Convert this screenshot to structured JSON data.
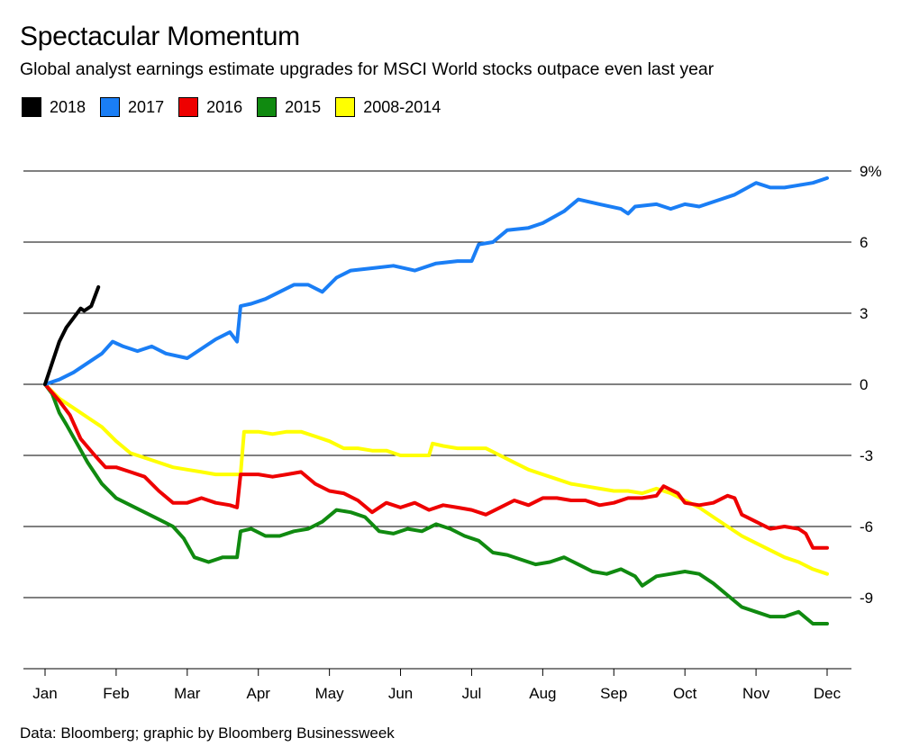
{
  "title": "Spectacular Momentum",
  "subtitle": "Global analyst earnings estimate upgrades for MSCI World stocks outpace even last year",
  "source": "Data: Bloomberg; graphic by Bloomberg Businessweek",
  "legend": [
    {
      "label": "2018",
      "color": "#000000"
    },
    {
      "label": "2017",
      "color": "#1a7ef5"
    },
    {
      "label": "2016",
      "color": "#ee0000"
    },
    {
      "label": "2015",
      "color": "#108a10"
    },
    {
      "label": "2008-2014",
      "color": "#ffff00"
    }
  ],
  "chart_data": {
    "type": "line",
    "title": "Spectacular Momentum",
    "subtitle": "Global analyst earnings estimate upgrades for MSCI World stocks outpace even last year",
    "x_unit": "month index (0 = Jan, 11 = Dec)",
    "x_categories": [
      "Jan",
      "Feb",
      "Mar",
      "Apr",
      "May",
      "Jun",
      "Jul",
      "Aug",
      "Sep",
      "Oct",
      "Nov",
      "Dec"
    ],
    "ylim": [
      -12,
      9
    ],
    "y_ticks": [
      9,
      6,
      3,
      0,
      -3,
      -6,
      -9
    ],
    "y_tick_labels": [
      "9%",
      "6",
      "3",
      "0",
      "-3",
      "-6",
      "-9"
    ],
    "grid": true,
    "legend_position": "top-left",
    "series": [
      {
        "name": "2018",
        "color": "#000000",
        "points": [
          [
            0,
            0
          ],
          [
            0.1,
            0.9
          ],
          [
            0.2,
            1.8
          ],
          [
            0.3,
            2.4
          ],
          [
            0.4,
            2.8
          ],
          [
            0.5,
            3.2
          ],
          [
            0.55,
            3.1
          ],
          [
            0.65,
            3.3
          ],
          [
            0.75,
            4.1
          ]
        ]
      },
      {
        "name": "2017",
        "color": "#1a7ef5",
        "points": [
          [
            0,
            0
          ],
          [
            0.2,
            0.2
          ],
          [
            0.4,
            0.5
          ],
          [
            0.6,
            0.9
          ],
          [
            0.8,
            1.3
          ],
          [
            0.95,
            1.8
          ],
          [
            1.1,
            1.6
          ],
          [
            1.3,
            1.4
          ],
          [
            1.5,
            1.6
          ],
          [
            1.7,
            1.3
          ],
          [
            2.0,
            1.1
          ],
          [
            2.2,
            1.5
          ],
          [
            2.4,
            1.9
          ],
          [
            2.6,
            2.2
          ],
          [
            2.7,
            1.8
          ],
          [
            2.75,
            3.3
          ],
          [
            2.9,
            3.4
          ],
          [
            3.1,
            3.6
          ],
          [
            3.3,
            3.9
          ],
          [
            3.5,
            4.2
          ],
          [
            3.7,
            4.2
          ],
          [
            3.9,
            3.9
          ],
          [
            4.1,
            4.5
          ],
          [
            4.3,
            4.8
          ],
          [
            4.6,
            4.9
          ],
          [
            4.9,
            5.0
          ],
          [
            5.2,
            4.8
          ],
          [
            5.5,
            5.1
          ],
          [
            5.8,
            5.2
          ],
          [
            6.0,
            5.2
          ],
          [
            6.1,
            5.9
          ],
          [
            6.3,
            6.0
          ],
          [
            6.5,
            6.5
          ],
          [
            6.8,
            6.6
          ],
          [
            7.0,
            6.8
          ],
          [
            7.3,
            7.3
          ],
          [
            7.5,
            7.8
          ],
          [
            7.8,
            7.6
          ],
          [
            8.1,
            7.4
          ],
          [
            8.2,
            7.2
          ],
          [
            8.3,
            7.5
          ],
          [
            8.6,
            7.6
          ],
          [
            8.8,
            7.4
          ],
          [
            9.0,
            7.6
          ],
          [
            9.2,
            7.5
          ],
          [
            9.5,
            7.8
          ],
          [
            9.7,
            8.0
          ],
          [
            10.0,
            8.5
          ],
          [
            10.2,
            8.3
          ],
          [
            10.4,
            8.3
          ],
          [
            10.6,
            8.4
          ],
          [
            10.8,
            8.5
          ],
          [
            11.0,
            8.7
          ]
        ]
      },
      {
        "name": "2016",
        "color": "#ee0000",
        "points": [
          [
            0,
            0
          ],
          [
            0.2,
            -0.7
          ],
          [
            0.35,
            -1.3
          ],
          [
            0.5,
            -2.3
          ],
          [
            0.7,
            -3.0
          ],
          [
            0.85,
            -3.5
          ],
          [
            1.0,
            -3.5
          ],
          [
            1.2,
            -3.7
          ],
          [
            1.4,
            -3.9
          ],
          [
            1.6,
            -4.5
          ],
          [
            1.8,
            -5.0
          ],
          [
            2.0,
            -5.0
          ],
          [
            2.2,
            -4.8
          ],
          [
            2.4,
            -5.0
          ],
          [
            2.6,
            -5.1
          ],
          [
            2.7,
            -5.2
          ],
          [
            2.75,
            -3.8
          ],
          [
            3.0,
            -3.8
          ],
          [
            3.2,
            -3.9
          ],
          [
            3.4,
            -3.8
          ],
          [
            3.6,
            -3.7
          ],
          [
            3.8,
            -4.2
          ],
          [
            4.0,
            -4.5
          ],
          [
            4.2,
            -4.6
          ],
          [
            4.4,
            -4.9
          ],
          [
            4.6,
            -5.4
          ],
          [
            4.8,
            -5.0
          ],
          [
            5.0,
            -5.2
          ],
          [
            5.2,
            -5.0
          ],
          [
            5.4,
            -5.3
          ],
          [
            5.6,
            -5.1
          ],
          [
            5.8,
            -5.2
          ],
          [
            6.0,
            -5.3
          ],
          [
            6.2,
            -5.5
          ],
          [
            6.4,
            -5.2
          ],
          [
            6.6,
            -4.9
          ],
          [
            6.8,
            -5.1
          ],
          [
            7.0,
            -4.8
          ],
          [
            7.2,
            -4.8
          ],
          [
            7.4,
            -4.9
          ],
          [
            7.6,
            -4.9
          ],
          [
            7.8,
            -5.1
          ],
          [
            8.0,
            -5.0
          ],
          [
            8.2,
            -4.8
          ],
          [
            8.4,
            -4.8
          ],
          [
            8.6,
            -4.7
          ],
          [
            8.7,
            -4.3
          ],
          [
            8.9,
            -4.6
          ],
          [
            9.0,
            -5.0
          ],
          [
            9.2,
            -5.1
          ],
          [
            9.4,
            -5.0
          ],
          [
            9.6,
            -4.7
          ],
          [
            9.7,
            -4.8
          ],
          [
            9.8,
            -5.5
          ],
          [
            10.0,
            -5.8
          ],
          [
            10.2,
            -6.1
          ],
          [
            10.4,
            -6.0
          ],
          [
            10.6,
            -6.1
          ],
          [
            10.7,
            -6.3
          ],
          [
            10.8,
            -6.9
          ],
          [
            11.0,
            -6.9
          ]
        ]
      },
      {
        "name": "2015",
        "color": "#108a10",
        "points": [
          [
            0,
            0
          ],
          [
            0.1,
            -0.4
          ],
          [
            0.2,
            -1.2
          ],
          [
            0.3,
            -1.7
          ],
          [
            0.45,
            -2.5
          ],
          [
            0.6,
            -3.3
          ],
          [
            0.8,
            -4.2
          ],
          [
            1.0,
            -4.8
          ],
          [
            1.2,
            -5.1
          ],
          [
            1.4,
            -5.4
          ],
          [
            1.6,
            -5.7
          ],
          [
            1.8,
            -6.0
          ],
          [
            1.95,
            -6.5
          ],
          [
            2.1,
            -7.3
          ],
          [
            2.3,
            -7.5
          ],
          [
            2.5,
            -7.3
          ],
          [
            2.7,
            -7.3
          ],
          [
            2.75,
            -6.2
          ],
          [
            2.9,
            -6.1
          ],
          [
            3.1,
            -6.4
          ],
          [
            3.3,
            -6.4
          ],
          [
            3.5,
            -6.2
          ],
          [
            3.7,
            -6.1
          ],
          [
            3.9,
            -5.8
          ],
          [
            4.1,
            -5.3
          ],
          [
            4.3,
            -5.4
          ],
          [
            4.5,
            -5.6
          ],
          [
            4.7,
            -6.2
          ],
          [
            4.9,
            -6.3
          ],
          [
            5.1,
            -6.1
          ],
          [
            5.3,
            -6.2
          ],
          [
            5.5,
            -5.9
          ],
          [
            5.7,
            -6.1
          ],
          [
            5.9,
            -6.4
          ],
          [
            6.1,
            -6.6
          ],
          [
            6.3,
            -7.1
          ],
          [
            6.5,
            -7.2
          ],
          [
            6.7,
            -7.4
          ],
          [
            6.9,
            -7.6
          ],
          [
            7.1,
            -7.5
          ],
          [
            7.3,
            -7.3
          ],
          [
            7.5,
            -7.6
          ],
          [
            7.7,
            -7.9
          ],
          [
            7.9,
            -8.0
          ],
          [
            8.1,
            -7.8
          ],
          [
            8.3,
            -8.1
          ],
          [
            8.4,
            -8.5
          ],
          [
            8.6,
            -8.1
          ],
          [
            8.8,
            -8.0
          ],
          [
            9.0,
            -7.9
          ],
          [
            9.2,
            -8.0
          ],
          [
            9.4,
            -8.4
          ],
          [
            9.6,
            -8.9
          ],
          [
            9.8,
            -9.4
          ],
          [
            10.0,
            -9.6
          ],
          [
            10.2,
            -9.8
          ],
          [
            10.4,
            -9.8
          ],
          [
            10.6,
            -9.6
          ],
          [
            10.8,
            -10.1
          ],
          [
            11.0,
            -10.1
          ]
        ]
      },
      {
        "name": "2008-2014",
        "color": "#ffff00",
        "points": [
          [
            0,
            0
          ],
          [
            0.2,
            -0.6
          ],
          [
            0.4,
            -1.0
          ],
          [
            0.6,
            -1.4
          ],
          [
            0.8,
            -1.8
          ],
          [
            1.0,
            -2.4
          ],
          [
            1.2,
            -2.9
          ],
          [
            1.4,
            -3.1
          ],
          [
            1.6,
            -3.3
          ],
          [
            1.8,
            -3.5
          ],
          [
            2.0,
            -3.6
          ],
          [
            2.2,
            -3.7
          ],
          [
            2.4,
            -3.8
          ],
          [
            2.6,
            -3.8
          ],
          [
            2.75,
            -3.8
          ],
          [
            2.8,
            -2.0
          ],
          [
            3.0,
            -2.0
          ],
          [
            3.2,
            -2.1
          ],
          [
            3.4,
            -2.0
          ],
          [
            3.6,
            -2.0
          ],
          [
            3.8,
            -2.2
          ],
          [
            4.0,
            -2.4
          ],
          [
            4.2,
            -2.7
          ],
          [
            4.4,
            -2.7
          ],
          [
            4.6,
            -2.8
          ],
          [
            4.8,
            -2.8
          ],
          [
            5.0,
            -3.0
          ],
          [
            5.2,
            -3.0
          ],
          [
            5.4,
            -3.0
          ],
          [
            5.45,
            -2.5
          ],
          [
            5.6,
            -2.6
          ],
          [
            5.8,
            -2.7
          ],
          [
            6.0,
            -2.7
          ],
          [
            6.2,
            -2.7
          ],
          [
            6.4,
            -3.0
          ],
          [
            6.6,
            -3.3
          ],
          [
            6.8,
            -3.6
          ],
          [
            7.0,
            -3.8
          ],
          [
            7.2,
            -4.0
          ],
          [
            7.4,
            -4.2
          ],
          [
            7.6,
            -4.3
          ],
          [
            7.8,
            -4.4
          ],
          [
            8.0,
            -4.5
          ],
          [
            8.2,
            -4.5
          ],
          [
            8.4,
            -4.6
          ],
          [
            8.6,
            -4.4
          ],
          [
            8.8,
            -4.6
          ],
          [
            9.0,
            -4.9
          ],
          [
            9.2,
            -5.2
          ],
          [
            9.4,
            -5.6
          ],
          [
            9.6,
            -6.0
          ],
          [
            9.8,
            -6.4
          ],
          [
            10.0,
            -6.7
          ],
          [
            10.2,
            -7.0
          ],
          [
            10.4,
            -7.3
          ],
          [
            10.6,
            -7.5
          ],
          [
            10.8,
            -7.8
          ],
          [
            11.0,
            -8.0
          ]
        ]
      }
    ]
  }
}
